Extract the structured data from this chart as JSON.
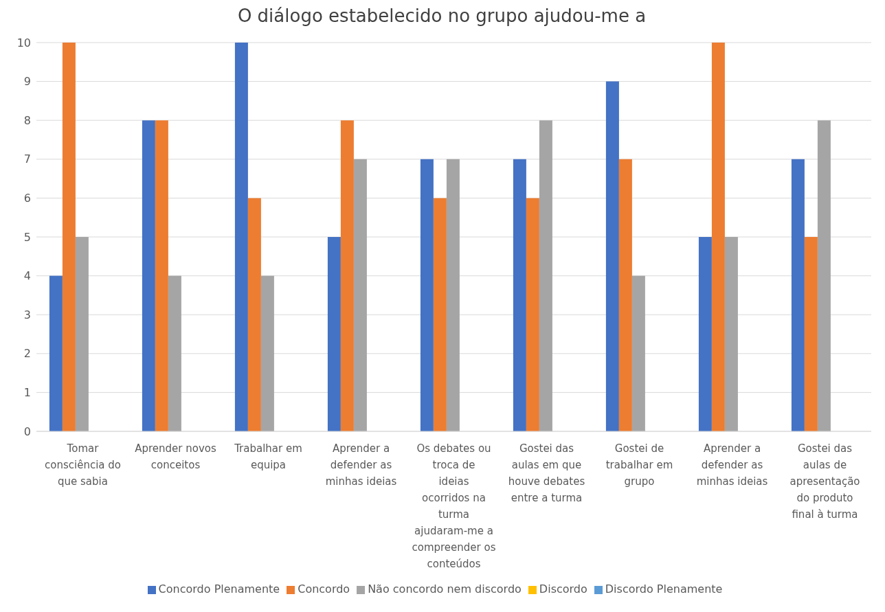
{
  "chart_data": {
    "type": "bar",
    "title": "O diálogo estabelecido no grupo ajudou-me a",
    "categories": [
      "Tomar consciência do que sabia",
      "Aprender novos conceitos",
      "Trabalhar em equipa",
      "Aprender a defender as minhas ideias",
      "Os debates ou troca de ideias ocorridos na turma ajudaram-me a compreender os conteúdos",
      "Gostei das aulas em que houve debates entre a turma",
      "Gostei de trabalhar em grupo",
      "Aprender a defender as minhas ideias",
      "Gostei das aulas de apresentação do produto final à turma"
    ],
    "series": [
      {
        "name": "Concordo Plenamente",
        "color": "#4472c4",
        "values": [
          4,
          8,
          10,
          5,
          7,
          7,
          9,
          5,
          7
        ]
      },
      {
        "name": "Concordo",
        "color": "#ed7d31",
        "values": [
          10,
          8,
          6,
          8,
          6,
          6,
          7,
          10,
          5
        ]
      },
      {
        "name": "Não concordo nem discordo",
        "color": "#a5a5a5",
        "values": [
          5,
          4,
          4,
          7,
          7,
          8,
          4,
          5,
          8
        ]
      },
      {
        "name": "Discordo",
        "color": "#ffc000",
        "values": [
          0,
          0,
          0,
          0,
          0,
          0,
          0,
          0,
          0
        ]
      },
      {
        "name": "Discordo Plenamente",
        "color": "#5b9bd5",
        "values": [
          0,
          0,
          0,
          0,
          0,
          0,
          0,
          0,
          0
        ]
      }
    ],
    "ylim": [
      0,
      10
    ],
    "yticks": [
      0,
      1,
      2,
      3,
      4,
      5,
      6,
      7,
      8,
      9,
      10
    ],
    "grid": "y",
    "legend": "bottom"
  }
}
